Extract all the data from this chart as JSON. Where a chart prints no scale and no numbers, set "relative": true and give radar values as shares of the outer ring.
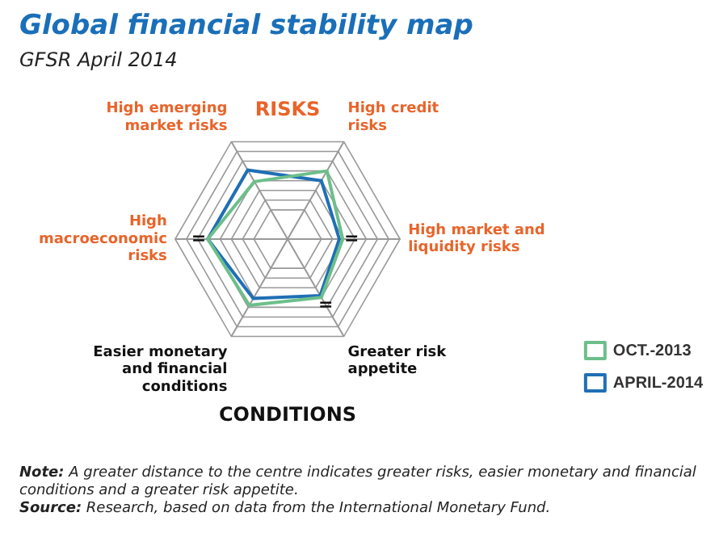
{
  "chart_data": {
    "type": "radar",
    "title": "Global financial stability map",
    "subtitle": "GFSR April 2014",
    "categories": [
      "High credit risks",
      "High market and liquidity risks",
      "Greater risk appetite",
      "Easier monetary and financial conditions",
      "High macroeconomic risks",
      "High emerging market risks"
    ],
    "relative": true,
    "grid": true,
    "legend": "bottom right",
    "marker": "none",
    "series": [
      {
        "name": "OCT.-2013",
        "color": "#6cbf8a",
        "values": [
          0.7,
          0.49,
          0.6,
          0.68,
          0.71,
          0.59
        ]
      },
      {
        "name": "APRIL-2014",
        "color": "#1f6fb5",
        "values": [
          0.6,
          0.46,
          0.58,
          0.61,
          0.71,
          0.71
        ]
      }
    ],
    "annotations": [
      "RISKS",
      "CONDITIONS",
      {
        "text": "=",
        "x": "High market and liquidity risks"
      },
      {
        "text": "=",
        "x": "Greater risk appetite"
      },
      {
        "text": "=",
        "x": "High macroeconomic risks"
      },
      "Note: A greater distance to the centre indicates greater risks, easier monetary and financial conditions and a greater risk appetite.",
      "Source: Research, based on data from the International Monetary Fund."
    ]
  }
}
